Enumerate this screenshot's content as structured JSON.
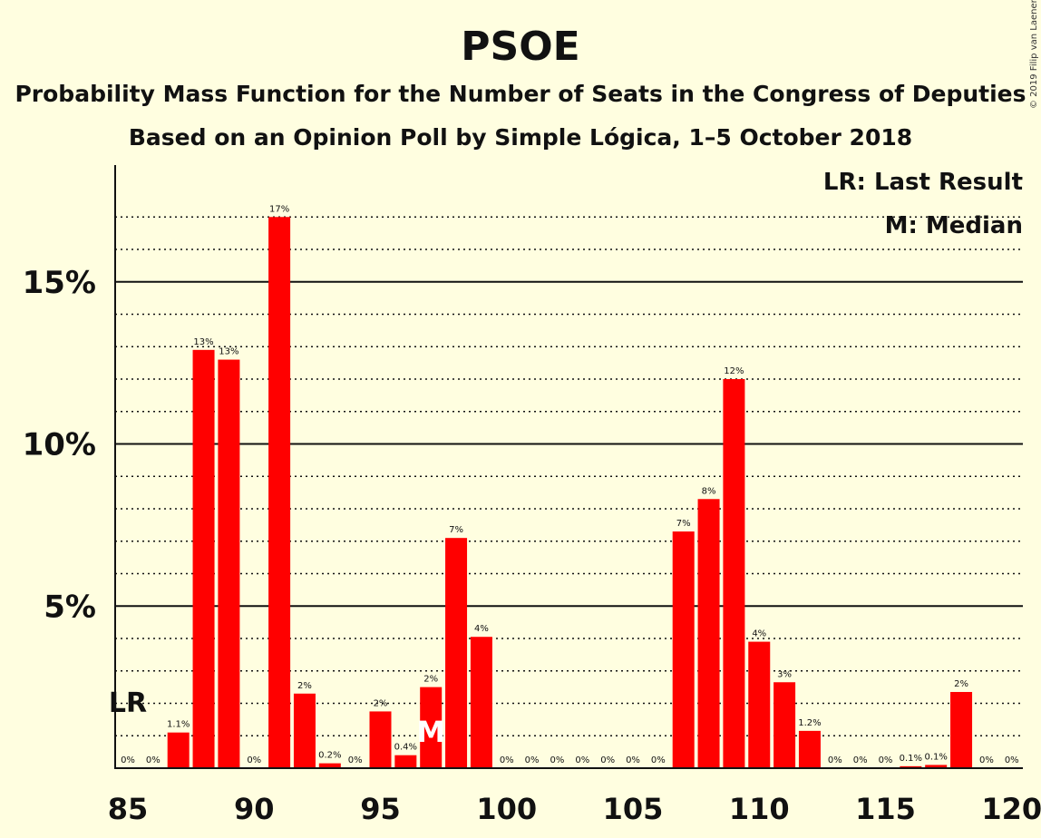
{
  "chart_data": {
    "type": "bar",
    "title": "PSOE",
    "subtitle_1": "Probability Mass Function for the Number of Seats in the Congress of Deputies",
    "subtitle_2": "Based on an Opinion Poll by Simple Lógica, 1–5 October 2018",
    "legend": {
      "last_result": "LR: Last Result",
      "median": "M: Median"
    },
    "copyright": "© 2019 Filip van Laenen",
    "bar_color": "#FF0000",
    "x": [
      85,
      86,
      87,
      88,
      89,
      90,
      91,
      92,
      93,
      94,
      95,
      96,
      97,
      98,
      99,
      100,
      101,
      102,
      103,
      104,
      105,
      106,
      107,
      108,
      109,
      110,
      111,
      112,
      113,
      114,
      115,
      116,
      117,
      118,
      119,
      120
    ],
    "values": [
      0,
      0,
      1.1,
      12.9,
      12.6,
      0,
      17.0,
      2.3,
      0.15,
      0,
      1.75,
      0.4,
      2.5,
      7.1,
      4.05,
      0,
      0,
      0,
      0,
      0,
      0,
      0,
      7.3,
      8.3,
      12.0,
      3.9,
      2.65,
      1.15,
      0,
      0,
      0,
      0.06,
      0.1,
      2.35,
      0,
      0
    ],
    "labels": [
      "0%",
      "0%",
      "1.1%",
      "13%",
      "13%",
      "0%",
      "17%",
      "2%",
      "0.2%",
      "0%",
      "2%",
      "0.4%",
      "2%",
      "7%",
      "4%",
      "0%",
      "0%",
      "0%",
      "0%",
      "0%",
      "0%",
      "0%",
      "7%",
      "8%",
      "12%",
      "4%",
      "3%",
      "1.2%",
      "0%",
      "0%",
      "0%",
      "0.1%",
      "0.1%",
      "2%",
      "0%",
      "0%"
    ],
    "xticks": [
      85,
      90,
      95,
      100,
      105,
      110,
      115,
      120
    ],
    "yticks": [
      {
        "value": 5,
        "label": "5%"
      },
      {
        "value": 10,
        "label": "10%"
      },
      {
        "value": 15,
        "label": "15%"
      }
    ],
    "ylim": [
      0,
      18.5
    ],
    "last_result": {
      "seat": 85,
      "label": "LR"
    },
    "median": {
      "seat": 97,
      "label": "M"
    }
  }
}
